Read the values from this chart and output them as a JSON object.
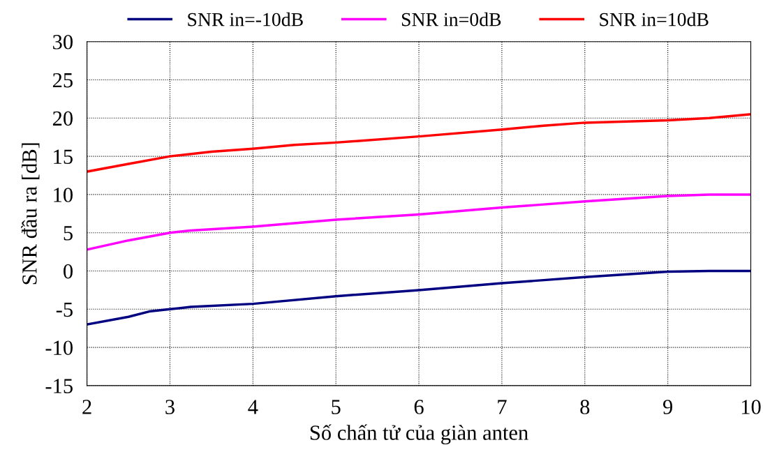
{
  "chart_data": {
    "type": "line",
    "xlabel": "Số chấn tử của giàn anten",
    "ylabel": "SNR đầu ra [dB]",
    "xlim": [
      2,
      10
    ],
    "xticks": [
      2,
      3,
      4,
      5,
      6,
      7,
      8,
      9,
      10
    ],
    "ylim": [
      -15,
      30
    ],
    "yticks": [
      -15,
      -10,
      -5,
      0,
      5,
      10,
      15,
      20,
      25,
      30
    ],
    "grid": true,
    "legend": "top",
    "marker": "none",
    "line_style": "solid",
    "series": [
      {
        "name": "SNR in=-10dB",
        "color": "#000080",
        "x": [
          2,
          2.5,
          2.75,
          3,
          3.25,
          4,
          5,
          6,
          7,
          8,
          9,
          9.5,
          10
        ],
        "values": [
          -7,
          -6,
          -5.3,
          -5,
          -4.7,
          -4.3,
          -3.3,
          -2.5,
          -1.6,
          -0.8,
          -0.1,
          0,
          0
        ]
      },
      {
        "name": "SNR in=0dB",
        "color": "#ff00ff",
        "x": [
          2,
          2.5,
          3,
          3.25,
          4,
          5,
          6,
          7,
          8,
          9,
          9.5,
          10
        ],
        "values": [
          2.8,
          4,
          5,
          5.3,
          5.8,
          6.7,
          7.4,
          8.3,
          9.1,
          9.8,
          10,
          10
        ]
      },
      {
        "name": "SNR in=10dB",
        "color": "#ff0000",
        "x": [
          2,
          2.5,
          3,
          3.5,
          4,
          4.5,
          5,
          6,
          7,
          7.5,
          8,
          9,
          9.5,
          10
        ],
        "values": [
          13,
          14,
          15,
          15.6,
          16,
          16.5,
          16.8,
          17.6,
          18.5,
          19,
          19.4,
          19.7,
          20,
          20.5
        ]
      }
    ]
  }
}
